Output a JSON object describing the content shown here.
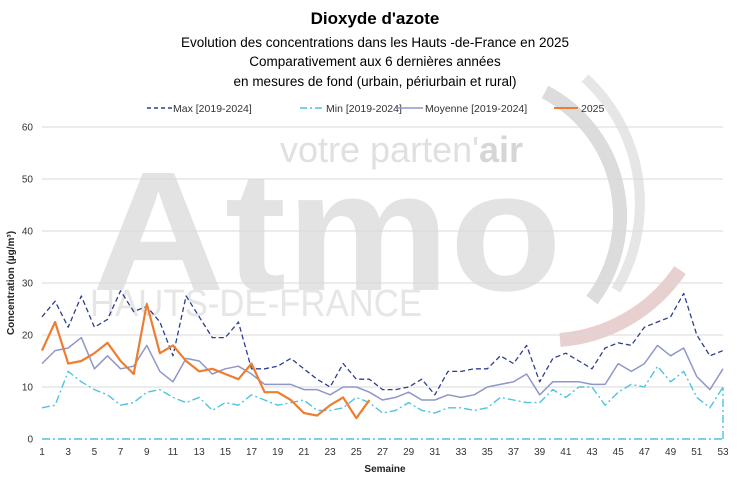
{
  "watermark": {
    "tagline_prefix": "votre parten'",
    "tagline_accent": "air",
    "brand": "Atmo",
    "region": "HAUTS-DE-FRANCE"
  },
  "chart_data": {
    "type": "line",
    "title": "Dioxyde d'azote",
    "subtitle_lines": [
      "Evolution des concentrations dans les Hauts -de-France en 2025",
      "Comparativement aux 6 dernières années",
      "en mesures de fond (urbain, périurbain et rural)"
    ],
    "xlabel": "Semaine",
    "ylabel": "Concentration (µg/m³)",
    "xlim": [
      1,
      53
    ],
    "ylim": [
      0,
      60
    ],
    "x_ticks": [
      1,
      3,
      5,
      7,
      9,
      11,
      13,
      15,
      17,
      19,
      21,
      23,
      25,
      27,
      29,
      31,
      33,
      35,
      37,
      39,
      41,
      43,
      45,
      47,
      49,
      51,
      53
    ],
    "y_ticks": [
      0,
      10,
      20,
      30,
      40,
      50,
      60
    ],
    "grid": "horizontal",
    "legend_position": "top",
    "series": [
      {
        "name": "Max [2019-2024]",
        "style": "dashed",
        "color": "#2f3f8f",
        "values": [
          23.5,
          26.5,
          21.5,
          27.5,
          21.5,
          23,
          28.5,
          24.5,
          25.5,
          22.5,
          16,
          27.5,
          23.5,
          19.5,
          19.5,
          22.5,
          13.5,
          13.5,
          14,
          15.5,
          13.5,
          11.5,
          10,
          14.5,
          11.5,
          11.5,
          9.5,
          9.5,
          10,
          11.5,
          8.5,
          13,
          13,
          13.5,
          13.5,
          16,
          14.5,
          18,
          11,
          15.5,
          16.5,
          15,
          13.5,
          17.5,
          18.5,
          18,
          21.5,
          22.5,
          23.5,
          28,
          20,
          16,
          17
        ]
      },
      {
        "name": "Min [2019-2024]",
        "style": "dashdot",
        "color": "#4fc3df",
        "values": [
          6,
          6.5,
          13,
          11,
          9.5,
          8.5,
          6.5,
          7,
          9,
          9.5,
          8,
          7,
          8,
          5.5,
          7,
          6.5,
          8.5,
          7.5,
          6.5,
          7,
          7.5,
          5.5,
          5.5,
          6,
          8,
          7,
          5,
          5.5,
          7,
          5.5,
          5,
          6,
          6,
          5.5,
          6,
          8,
          7.5,
          7,
          7,
          9.5,
          8,
          10,
          10,
          6.5,
          9,
          10.5,
          10,
          14,
          11,
          13,
          8,
          6,
          10
        ]
      },
      {
        "name": "Moyenne [2019-2024]",
        "style": "solid",
        "color": "#8f97c8",
        "values": [
          14.5,
          17,
          17.5,
          19.5,
          13.5,
          16,
          13.5,
          14,
          18,
          13,
          11,
          15.5,
          15,
          12.5,
          13.5,
          14,
          12.5,
          10.5,
          10.5,
          10.5,
          9.5,
          9.5,
          8.5,
          10,
          10,
          9,
          7.5,
          8,
          9,
          7.5,
          7.5,
          8.5,
          8,
          8.5,
          10,
          10.5,
          11,
          12.5,
          8.5,
          11,
          11,
          11,
          10.5,
          10.5,
          14.5,
          13,
          14.5,
          18,
          16,
          17.5,
          12,
          9.5,
          13.5
        ]
      },
      {
        "name": "2025",
        "style": "solid",
        "color": "#ed7d31",
        "values": [
          17,
          22.5,
          14.5,
          15,
          16.5,
          18.5,
          15,
          12.5,
          26,
          16.5,
          18,
          15,
          13,
          13.5,
          12.5,
          11.5,
          14.5,
          9,
          9,
          7.5,
          5,
          4.5,
          6.5,
          8,
          4,
          7.5
        ]
      }
    ]
  }
}
